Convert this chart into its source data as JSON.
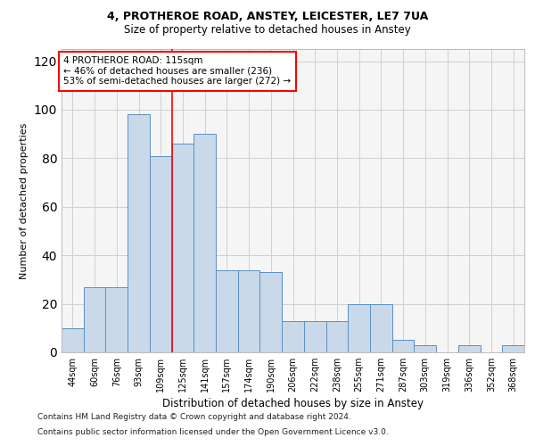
{
  "title1": "4, PROTHEROE ROAD, ANSTEY, LEICESTER, LE7 7UA",
  "title2": "Size of property relative to detached houses in Anstey",
  "xlabel": "Distribution of detached houses by size in Anstey",
  "ylabel": "Number of detached properties",
  "categories": [
    "44sqm",
    "60sqm",
    "76sqm",
    "93sqm",
    "109sqm",
    "125sqm",
    "141sqm",
    "157sqm",
    "174sqm",
    "190sqm",
    "206sqm",
    "222sqm",
    "238sqm",
    "255sqm",
    "271sqm",
    "287sqm",
    "303sqm",
    "319sqm",
    "336sqm",
    "352sqm",
    "368sqm"
  ],
  "values": [
    10,
    27,
    27,
    98,
    81,
    86,
    90,
    34,
    34,
    33,
    13,
    13,
    13,
    20,
    20,
    5,
    3,
    0,
    3,
    0,
    3
  ],
  "bar_color": "#c9d9ea",
  "bar_edge_color": "#5a8fc0",
  "vline_x": 4.5,
  "vline_color": "red",
  "annotation_line1": "4 PROTHEROE ROAD: 115sqm",
  "annotation_line2": "← 46% of detached houses are smaller (236)",
  "annotation_line3": "53% of semi-detached houses are larger (272) →",
  "annotation_box_color": "white",
  "annotation_box_edge": "red",
  "ylim": [
    0,
    125
  ],
  "yticks": [
    0,
    20,
    40,
    60,
    80,
    100,
    120
  ],
  "footer1": "Contains HM Land Registry data © Crown copyright and database right 2024.",
  "footer2": "Contains public sector information licensed under the Open Government Licence v3.0.",
  "bg_color": "#f5f5f5",
  "grid_color": "#d0d0d0"
}
